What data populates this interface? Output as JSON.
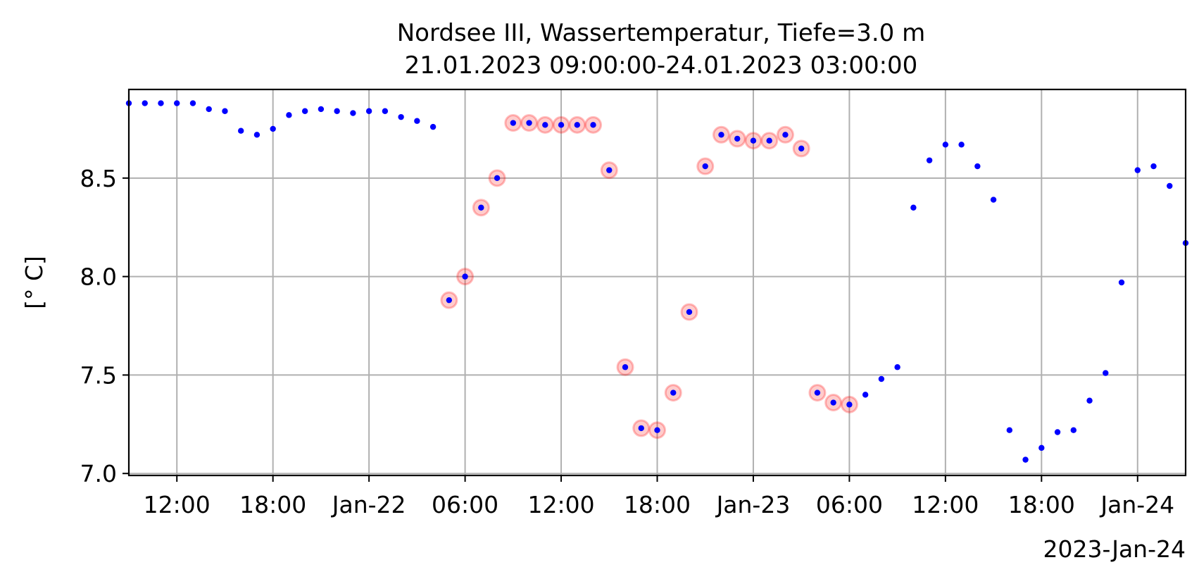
{
  "chart_data": {
    "type": "scatter",
    "title_line1": "Nordsee III, Wassertemperatur, Tiefe=3.0 m",
    "title_line2": "21.01.2023 09:00:00-24.01.2023 03:00:00",
    "xlabel": "",
    "ylabel": "[° C]",
    "x_offset_label": "2023-Jan-24",
    "x_range": [
      "2023-01-21 09:00",
      "2023-01-24 03:00"
    ],
    "ylim": [
      6.99,
      8.95
    ],
    "grid": true,
    "x_ticks": [
      {
        "value": "2023-01-21 12:00",
        "label": "12:00"
      },
      {
        "value": "2023-01-21 18:00",
        "label": "18:00"
      },
      {
        "value": "2023-01-22 00:00",
        "label": "Jan-22"
      },
      {
        "value": "2023-01-22 06:00",
        "label": "06:00"
      },
      {
        "value": "2023-01-22 12:00",
        "label": "12:00"
      },
      {
        "value": "2023-01-22 18:00",
        "label": "18:00"
      },
      {
        "value": "2023-01-23 00:00",
        "label": "Jan-23"
      },
      {
        "value": "2023-01-23 06:00",
        "label": "06:00"
      },
      {
        "value": "2023-01-23 12:00",
        "label": "12:00"
      },
      {
        "value": "2023-01-23 18:00",
        "label": "18:00"
      },
      {
        "value": "2023-01-24 00:00",
        "label": "Jan-24"
      }
    ],
    "y_ticks": [
      {
        "value": 7.0,
        "label": "7.0"
      },
      {
        "value": 7.5,
        "label": "7.5"
      },
      {
        "value": 8.0,
        "label": "8.0"
      },
      {
        "value": 8.5,
        "label": "8.5"
      }
    ],
    "series": [
      {
        "marker_color": "#0000ff",
        "points": [
          {
            "x": "2023-01-21 09:00",
            "y": 8.88
          },
          {
            "x": "2023-01-21 10:00",
            "y": 8.88
          },
          {
            "x": "2023-01-21 11:00",
            "y": 8.88
          },
          {
            "x": "2023-01-21 12:00",
            "y": 8.88
          },
          {
            "x": "2023-01-21 13:00",
            "y": 8.88
          },
          {
            "x": "2023-01-21 14:00",
            "y": 8.85
          },
          {
            "x": "2023-01-21 15:00",
            "y": 8.84
          },
          {
            "x": "2023-01-21 16:00",
            "y": 8.74
          },
          {
            "x": "2023-01-21 17:00",
            "y": 8.72
          },
          {
            "x": "2023-01-21 18:00",
            "y": 8.75
          },
          {
            "x": "2023-01-21 19:00",
            "y": 8.82
          },
          {
            "x": "2023-01-21 20:00",
            "y": 8.84
          },
          {
            "x": "2023-01-21 21:00",
            "y": 8.85
          },
          {
            "x": "2023-01-21 22:00",
            "y": 8.84
          },
          {
            "x": "2023-01-21 23:00",
            "y": 8.83
          },
          {
            "x": "2023-01-22 00:00",
            "y": 8.84
          },
          {
            "x": "2023-01-22 01:00",
            "y": 8.84
          },
          {
            "x": "2023-01-22 02:00",
            "y": 8.81
          },
          {
            "x": "2023-01-22 03:00",
            "y": 8.79
          },
          {
            "x": "2023-01-22 04:00",
            "y": 8.76
          },
          {
            "x": "2023-01-22 05:00",
            "y": 7.88,
            "flagged": true
          },
          {
            "x": "2023-01-22 06:00",
            "y": 8.0,
            "flagged": true
          },
          {
            "x": "2023-01-22 07:00",
            "y": 8.35,
            "flagged": true
          },
          {
            "x": "2023-01-22 08:00",
            "y": 8.5,
            "flagged": true
          },
          {
            "x": "2023-01-22 09:00",
            "y": 8.78,
            "flagged": true
          },
          {
            "x": "2023-01-22 10:00",
            "y": 8.78,
            "flagged": true
          },
          {
            "x": "2023-01-22 11:00",
            "y": 8.77,
            "flagged": true
          },
          {
            "x": "2023-01-22 12:00",
            "y": 8.77,
            "flagged": true
          },
          {
            "x": "2023-01-22 13:00",
            "y": 8.77,
            "flagged": true
          },
          {
            "x": "2023-01-22 14:00",
            "y": 8.77,
            "flagged": true
          },
          {
            "x": "2023-01-22 15:00",
            "y": 8.54,
            "flagged": true
          },
          {
            "x": "2023-01-22 16:00",
            "y": 7.54,
            "flagged": true
          },
          {
            "x": "2023-01-22 17:00",
            "y": 7.23,
            "flagged": true
          },
          {
            "x": "2023-01-22 18:00",
            "y": 7.22,
            "flagged": true
          },
          {
            "x": "2023-01-22 19:00",
            "y": 7.41,
            "flagged": true
          },
          {
            "x": "2023-01-22 20:00",
            "y": 7.82,
            "flagged": true
          },
          {
            "x": "2023-01-22 21:00",
            "y": 8.56,
            "flagged": true
          },
          {
            "x": "2023-01-22 22:00",
            "y": 8.72,
            "flagged": true
          },
          {
            "x": "2023-01-22 23:00",
            "y": 8.7,
            "flagged": true
          },
          {
            "x": "2023-01-23 00:00",
            "y": 8.69,
            "flagged": true
          },
          {
            "x": "2023-01-23 01:00",
            "y": 8.69,
            "flagged": true
          },
          {
            "x": "2023-01-23 02:00",
            "y": 8.72,
            "flagged": true
          },
          {
            "x": "2023-01-23 03:00",
            "y": 8.65,
            "flagged": true
          },
          {
            "x": "2023-01-23 04:00",
            "y": 7.41,
            "flagged": true
          },
          {
            "x": "2023-01-23 05:00",
            "y": 7.36,
            "flagged": true
          },
          {
            "x": "2023-01-23 06:00",
            "y": 7.35,
            "flagged": true
          },
          {
            "x": "2023-01-23 07:00",
            "y": 7.4
          },
          {
            "x": "2023-01-23 08:00",
            "y": 7.48
          },
          {
            "x": "2023-01-23 09:00",
            "y": 7.54
          },
          {
            "x": "2023-01-23 10:00",
            "y": 8.35
          },
          {
            "x": "2023-01-23 11:00",
            "y": 8.59
          },
          {
            "x": "2023-01-23 12:00",
            "y": 8.67
          },
          {
            "x": "2023-01-23 13:00",
            "y": 8.67
          },
          {
            "x": "2023-01-23 14:00",
            "y": 8.56
          },
          {
            "x": "2023-01-23 15:00",
            "y": 8.39
          },
          {
            "x": "2023-01-23 16:00",
            "y": 7.22
          },
          {
            "x": "2023-01-23 17:00",
            "y": 7.07
          },
          {
            "x": "2023-01-23 18:00",
            "y": 7.13
          },
          {
            "x": "2023-01-23 19:00",
            "y": 7.21
          },
          {
            "x": "2023-01-23 20:00",
            "y": 7.22
          },
          {
            "x": "2023-01-23 21:00",
            "y": 7.37
          },
          {
            "x": "2023-01-23 22:00",
            "y": 7.51
          },
          {
            "x": "2023-01-23 23:00",
            "y": 7.97
          },
          {
            "x": "2023-01-24 00:00",
            "y": 8.54
          },
          {
            "x": "2023-01-24 01:00",
            "y": 8.56
          },
          {
            "x": "2023-01-24 02:00",
            "y": 8.46
          },
          {
            "x": "2023-01-24 03:00",
            "y": 8.17
          }
        ]
      }
    ],
    "flag_marker_color": "#ff0000"
  }
}
